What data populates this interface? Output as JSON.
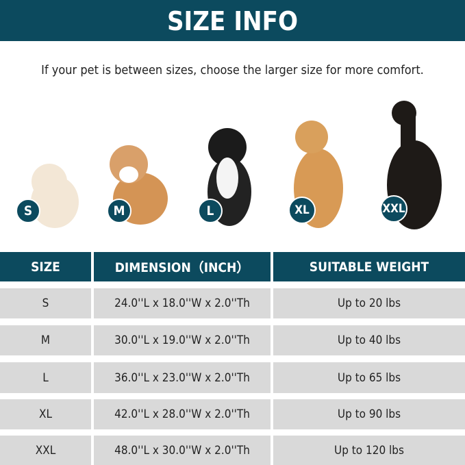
{
  "title": "SIZE INFO",
  "note": "If your pet is between sizes, choose the larger size for more comfort.",
  "colors": {
    "brand": "#0c4a5e",
    "row": "#d9d9d9"
  },
  "dogs": [
    {
      "size": "S"
    },
    {
      "size": "M"
    },
    {
      "size": "L"
    },
    {
      "size": "XL"
    },
    {
      "size": "XXL"
    }
  ],
  "table": {
    "headers": [
      "SIZE",
      "DIMENSION（INCH）",
      "SUITABLE WEIGHT"
    ],
    "rows": [
      [
        "S",
        "24.0''L x 18.0''W x 2.0''Th",
        "Up to 20 lbs"
      ],
      [
        "M",
        "30.0''L x 19.0''W x 2.0''Th",
        "Up to 40 lbs"
      ],
      [
        "L",
        "36.0''L x 23.0''W x 2.0''Th",
        "Up to 65 lbs"
      ],
      [
        "XL",
        "42.0''L x 28.0''W x 2.0''Th",
        "Up to 90 lbs"
      ],
      [
        "XXL",
        "48.0''L x 30.0''W x 2.0''Th",
        "Up to 120 lbs"
      ]
    ]
  }
}
